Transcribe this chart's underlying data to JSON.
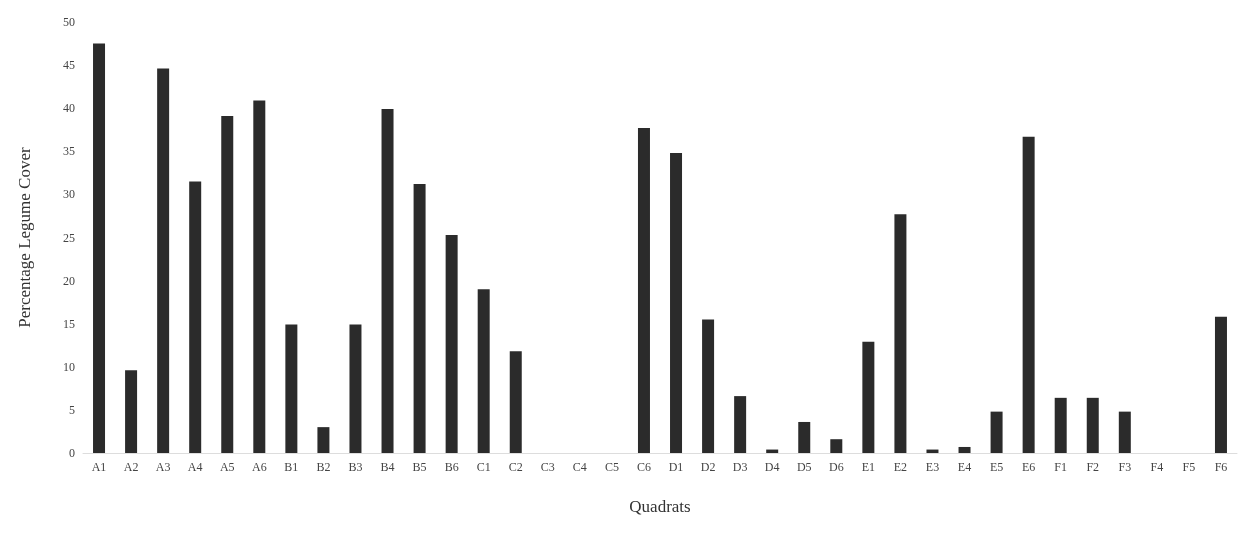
{
  "chart_data": {
    "type": "bar",
    "xlabel": "Quadrats",
    "ylabel": "Percentage Legume Cover",
    "categories": [
      "A1",
      "A2",
      "A3",
      "A4",
      "A5",
      "A6",
      "B1",
      "B2",
      "B3",
      "B4",
      "B5",
      "B6",
      "C1",
      "C2",
      "C3",
      "C4",
      "C5",
      "C6",
      "D1",
      "D2",
      "D3",
      "D4",
      "D5",
      "D6",
      "E1",
      "E2",
      "E3",
      "E4",
      "E5",
      "E6",
      "F1",
      "F2",
      "F3",
      "F4",
      "F5",
      "F6"
    ],
    "values": [
      47.5,
      9.6,
      44.6,
      31.5,
      39.1,
      40.9,
      14.9,
      3.0,
      14.9,
      39.9,
      31.2,
      25.3,
      19.0,
      11.8,
      0,
      0,
      0,
      37.7,
      34.8,
      15.5,
      6.6,
      0.4,
      3.6,
      1.6,
      12.9,
      27.7,
      0.4,
      0.7,
      4.8,
      36.7,
      6.4,
      6.4,
      4.8,
      0,
      0,
      15.8
    ],
    "color": "#2b2b2b",
    "ylim": [
      0,
      50
    ],
    "yticks": [
      0,
      5,
      10,
      15,
      20,
      25,
      30,
      35,
      40,
      45,
      50
    ]
  }
}
